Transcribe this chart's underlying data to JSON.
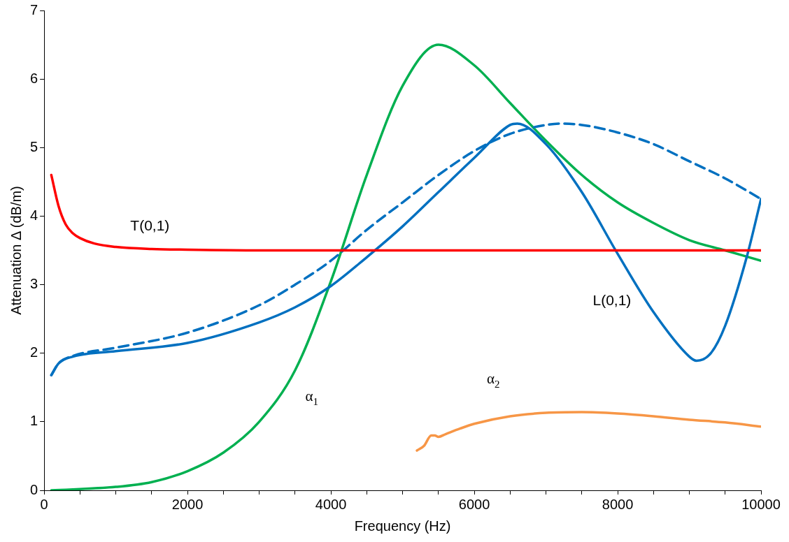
{
  "chart_data": {
    "type": "line",
    "xlabel": "Frequency (Hz)",
    "ylabel": "Attenuation Δ (dB/m)",
    "xlim": [
      0,
      10000
    ],
    "ylim": [
      0,
      7
    ],
    "xticks": [
      0,
      {
        "value": 500,
        "label": null
      },
      {
        "value": 1000,
        "label": null
      },
      {
        "value": 1500,
        "label": null
      },
      2000,
      {
        "value": 2500,
        "label": null
      },
      {
        "value": 3000,
        "label": null
      },
      {
        "value": 3500,
        "label": null
      },
      4000,
      {
        "value": 4500,
        "label": null
      },
      {
        "value": 5000,
        "label": null
      },
      {
        "value": 5500,
        "label": null
      },
      6000,
      {
        "value": 6500,
        "label": null
      },
      {
        "value": 7000,
        "label": null
      },
      {
        "value": 7500,
        "label": null
      },
      8000,
      {
        "value": 8500,
        "label": null
      },
      {
        "value": 9000,
        "label": null
      },
      {
        "value": 9500,
        "label": null
      },
      10000
    ],
    "yticks": [
      0,
      1,
      2,
      3,
      4,
      5,
      6,
      7
    ],
    "grid": false,
    "legend": false,
    "marker": "none",
    "series": [
      {
        "name": "T(0,1)",
        "color": "#ff0000",
        "line_style": "solid",
        "x": [
          100,
          200,
          300,
          400,
          500,
          700,
          1000,
          1500,
          2000,
          3000,
          5000,
          7000,
          10000
        ],
        "values": [
          4.6,
          4.15,
          3.88,
          3.75,
          3.68,
          3.6,
          3.55,
          3.52,
          3.51,
          3.5,
          3.5,
          3.5,
          3.5
        ]
      },
      {
        "color": "#0070c0",
        "line_style": "dashed",
        "x": [
          100,
          200,
          400,
          1000,
          2000,
          3000,
          3500,
          4000,
          4500,
          5000,
          5500,
          6000,
          6500,
          7000,
          7200,
          7500,
          8000,
          8500,
          9000,
          9500,
          10000
        ],
        "values": [
          1.68,
          1.85,
          1.96,
          2.08,
          2.3,
          2.7,
          3.0,
          3.35,
          3.8,
          4.2,
          4.6,
          4.95,
          5.2,
          5.33,
          5.35,
          5.33,
          5.22,
          5.05,
          4.8,
          4.55,
          4.25
        ]
      },
      {
        "name": "L(0,1)",
        "color": "#0070c0",
        "line_style": "solid",
        "x": [
          100,
          200,
          400,
          1000,
          2000,
          3000,
          3500,
          4000,
          4500,
          5000,
          5500,
          6000,
          6500,
          6600,
          7000,
          7500,
          8000,
          8500,
          9000,
          9100,
          9300,
          9500,
          9800,
          10000
        ],
        "values": [
          1.68,
          1.85,
          1.95,
          2.03,
          2.15,
          2.45,
          2.67,
          2.98,
          3.4,
          3.85,
          4.35,
          4.85,
          5.33,
          5.35,
          5.05,
          4.35,
          3.45,
          2.6,
          1.95,
          1.89,
          2.0,
          2.4,
          3.4,
          4.25
        ]
      },
      {
        "name": "α$_{1}$",
        "color": "#00b050",
        "line_style": "solid",
        "x": [
          100,
          1000,
          1500,
          2000,
          2500,
          3000,
          3500,
          4000,
          4500,
          5000,
          5500,
          6000,
          6500,
          7000,
          7500,
          8000,
          8500,
          9000,
          9500,
          10000
        ],
        "values": [
          0,
          0.05,
          0.12,
          0.28,
          0.55,
          1.0,
          1.75,
          3.05,
          4.6,
          5.9,
          6.5,
          6.2,
          5.65,
          5.1,
          4.6,
          4.2,
          3.9,
          3.65,
          3.5,
          3.35
        ]
      },
      {
        "name": "α$_{2}$",
        "color": "#f79646",
        "line_style": "solid",
        "x": [
          5200,
          5300,
          5400,
          5450,
          5500,
          5600,
          5800,
          6000,
          6500,
          7000,
          7500,
          8000,
          8500,
          9000,
          9500,
          10000
        ],
        "values": [
          0.58,
          0.65,
          0.8,
          0.8,
          0.78,
          0.82,
          0.9,
          0.97,
          1.08,
          1.13,
          1.14,
          1.12,
          1.08,
          1.03,
          0.99,
          0.93
        ]
      }
    ]
  }
}
